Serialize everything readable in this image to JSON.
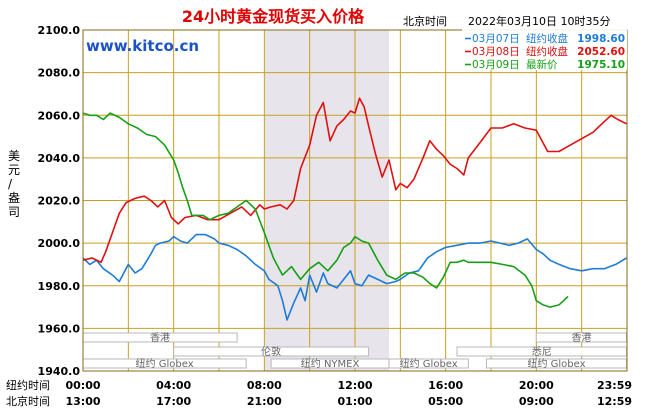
{
  "header": {
    "title": "24小时黄金现货买入价格",
    "time_label": "北京时间",
    "datetime": "2022年03月10日 10时35分",
    "watermark": "www.kitco.cn"
  },
  "colors": {
    "title": "#e00000",
    "watermark": "#1a53c8",
    "grid": "#c8a020",
    "border": "#8a6a18",
    "band": "#e7e4ec",
    "axis_text": "#000000"
  },
  "chart_data": {
    "type": "line",
    "title": "24小时黄金现货买入价格",
    "ylabel": "美元/盎司",
    "ylim": [
      1940,
      2100
    ],
    "yticks": [
      "2100.0",
      "2080.0",
      "2060.0",
      "2040.0",
      "2020.0",
      "2000.0",
      "1980.0",
      "1960.0",
      "1940.0"
    ],
    "y_tick_values": [
      2100,
      2080,
      2060,
      2040,
      2020,
      2000,
      1980,
      1960,
      1940
    ],
    "xlim": [
      0,
      24
    ],
    "x_tick_hours": [
      0,
      4,
      8,
      12,
      16,
      20,
      23.98
    ],
    "xticks_ny": [
      "00:00",
      "04:00",
      "08:00",
      "12:00",
      "16:00",
      "20:00",
      "23:59"
    ],
    "xticks_bj": [
      "13:00",
      "17:00",
      "21:00",
      "01:00",
      "05:00",
      "09:00",
      "12:59"
    ],
    "xaxis_ny_label": "纽约时间",
    "xaxis_bj_label": "北京时间",
    "highlight_band": [
      8,
      13.5
    ],
    "grid": true,
    "legend_position": "top-right",
    "series": [
      {
        "name": "03月07日",
        "status": "纽约收盘",
        "value_text": "1998.60",
        "color": "#1e7bd8",
        "x": [
          0,
          0.3,
          0.6,
          0.9,
          1.3,
          1.6,
          2.0,
          2.3,
          2.6,
          3.0,
          3.2,
          3.4,
          3.8,
          4.0,
          4.3,
          4.6,
          5.0,
          5.4,
          5.8,
          6.0,
          6.4,
          6.8,
          7.2,
          7.6,
          8.0,
          8.2,
          8.6,
          8.8,
          9.0,
          9.3,
          9.6,
          9.8,
          10.0,
          10.3,
          10.6,
          10.8,
          11.2,
          11.5,
          11.8,
          12.0,
          12.3,
          12.6,
          13.0,
          13.4,
          13.8,
          14.0,
          14.4,
          14.8,
          15.2,
          15.6,
          16.0,
          16.5,
          17.0,
          17.5,
          18.0,
          18.4,
          18.8,
          19.2,
          19.6,
          20.0,
          20.3,
          20.6,
          21.0,
          21.5,
          22.0,
          22.5,
          23.0,
          23.5,
          23.98
        ],
        "values": [
          1993,
          1990,
          1992,
          1988,
          1985,
          1982,
          1990,
          1986,
          1988,
          1995,
          1999,
          2000,
          2001,
          2003,
          2001,
          2000,
          2004,
          2004,
          2002,
          2000,
          1999,
          1997,
          1994,
          1990,
          1987,
          1983,
          1980,
          1973,
          1964,
          1972,
          1979,
          1973,
          1985,
          1977,
          1986,
          1981,
          1979,
          1983,
          1987,
          1981,
          1980,
          1985,
          1983,
          1981,
          1982,
          1983,
          1986,
          1987,
          1993,
          1996,
          1998,
          1999,
          2000,
          2000,
          2001,
          2000,
          1999,
          2000,
          2002,
          1997,
          1995,
          1992,
          1990,
          1988,
          1987,
          1988,
          1988,
          1990,
          1993
        ]
      },
      {
        "name": "03月08日",
        "status": "纽约收盘",
        "value_text": "2052.60",
        "color": "#e01010",
        "x": [
          0,
          0.4,
          0.8,
          1.0,
          1.3,
          1.6,
          1.9,
          2.3,
          2.7,
          3.0,
          3.3,
          3.6,
          3.9,
          4.2,
          4.5,
          5.0,
          5.5,
          6.0,
          6.5,
          7.0,
          7.4,
          7.8,
          8.0,
          8.3,
          8.7,
          9.0,
          9.3,
          9.6,
          10.0,
          10.3,
          10.6,
          10.9,
          11.2,
          11.5,
          11.8,
          12.0,
          12.2,
          12.4,
          12.6,
          12.9,
          13.2,
          13.5,
          13.8,
          14.0,
          14.3,
          14.6,
          15.0,
          15.3,
          15.6,
          15.9,
          16.2,
          16.5,
          16.8,
          17.0,
          17.5,
          18.0,
          18.5,
          19.0,
          19.5,
          20.0,
          20.5,
          21.0,
          21.5,
          22.0,
          22.5,
          23.0,
          23.3,
          23.6,
          23.98
        ],
        "values": [
          1992,
          1993,
          1991,
          1996,
          2005,
          2014,
          2019,
          2021,
          2022,
          2020,
          2017,
          2020,
          2012,
          2009,
          2012,
          2013,
          2011,
          2011,
          2014,
          2017,
          2013,
          2018,
          2016,
          2017,
          2018,
          2016,
          2020,
          2035,
          2046,
          2060,
          2066,
          2048,
          2055,
          2058,
          2062,
          2061,
          2068,
          2064,
          2055,
          2042,
          2031,
          2039,
          2025,
          2028,
          2026,
          2030,
          2040,
          2048,
          2044,
          2041,
          2037,
          2035,
          2032,
          2040,
          2047,
          2054,
          2054,
          2056,
          2054,
          2053,
          2043,
          2043,
          2046,
          2049,
          2052,
          2057,
          2060,
          2058,
          2056
        ]
      },
      {
        "name": "03月09日",
        "status": "最新价",
        "value_text": "1975.10",
        "color": "#16a016",
        "x": [
          0,
          0.3,
          0.6,
          0.9,
          1.2,
          1.6,
          2.0,
          2.4,
          2.8,
          3.2,
          3.6,
          4.0,
          4.2,
          4.4,
          4.6,
          4.8,
          5.0,
          5.3,
          5.6,
          6.0,
          6.4,
          6.8,
          7.2,
          7.6,
          8.0,
          8.4,
          8.8,
          9.2,
          9.6,
          10.0,
          10.4,
          10.8,
          11.2,
          11.5,
          11.8,
          12.0,
          12.3,
          12.6,
          13.0,
          13.4,
          13.8,
          14.2,
          14.6,
          15.0,
          15.3,
          15.6,
          15.9,
          16.2,
          16.5,
          16.8,
          17.0,
          17.5,
          18.0,
          18.5,
          19.0,
          19.5,
          19.8,
          20.0,
          20.3,
          20.6,
          21.0,
          21.4
        ],
        "values": [
          2061,
          2060,
          2060,
          2058,
          2061,
          2059,
          2056,
          2054,
          2051,
          2050,
          2046,
          2039,
          2033,
          2026,
          2020,
          2013,
          2013,
          2013,
          2011,
          2013,
          2014,
          2017,
          2020,
          2016,
          2005,
          1993,
          1985,
          1989,
          1983,
          1988,
          1991,
          1987,
          1992,
          1998,
          2000,
          2003,
          2001,
          2000,
          1992,
          1985,
          1983,
          1986,
          1986,
          1984,
          1981,
          1979,
          1984,
          1991,
          1991,
          1992,
          1991,
          1991,
          1991,
          1990,
          1989,
          1985,
          1980,
          1973,
          1971,
          1970,
          1971,
          1975
        ]
      }
    ],
    "sessions": [
      {
        "label": "香港",
        "start": 0,
        "end": 6.8
      },
      {
        "label": "伦敦",
        "start": 4.0,
        "end": 12.6
      },
      {
        "label": "纽约 Globex",
        "start": 0,
        "end": 7.2
      },
      {
        "label": "纽约 NYMEX",
        "start": 8.3,
        "end": 13.5
      },
      {
        "label": "纽约 Globex",
        "start": 13.5,
        "end": 17.0
      },
      {
        "label": "香港",
        "start": 20.0,
        "end": 23.98
      },
      {
        "label": "悉尼",
        "start": 16.5,
        "end": 23.98
      },
      {
        "label": "纽约 Globex",
        "start": 17.8,
        "end": 23.98
      }
    ]
  }
}
